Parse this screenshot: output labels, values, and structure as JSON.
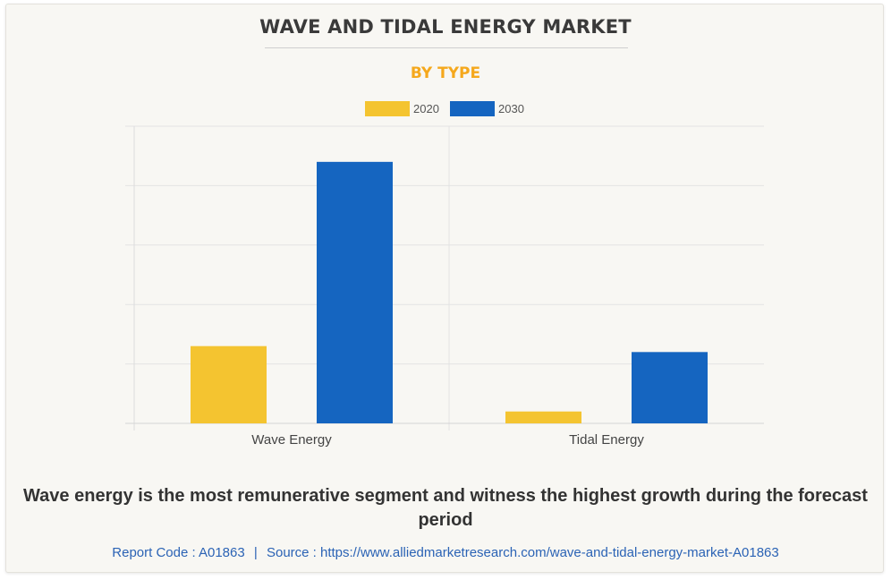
{
  "header": {
    "title": "WAVE AND TIDAL ENERGY MARKET",
    "subtitle": "BY TYPE"
  },
  "chart_data": {
    "type": "bar",
    "categories": [
      "Wave Energy",
      "Tidal Energy"
    ],
    "series": [
      {
        "name": "2020",
        "color": "#f4c430",
        "values": [
          1.3,
          0.2
        ]
      },
      {
        "name": "2030",
        "color": "#1565c0",
        "values": [
          4.4,
          1.2
        ]
      }
    ],
    "ylim": [
      0,
      5
    ],
    "y_tick_labels_shown": false,
    "grid": true,
    "legend_position": "top-center"
  },
  "caption": "Wave energy is the most remunerative segment and witness the highest growth during the forecast period",
  "footer": {
    "report_code": "Report Code : A01863",
    "separator": "|",
    "source": "Source : https://www.alliedmarketresearch.com/wave-and-tidal-energy-market-A01863"
  }
}
